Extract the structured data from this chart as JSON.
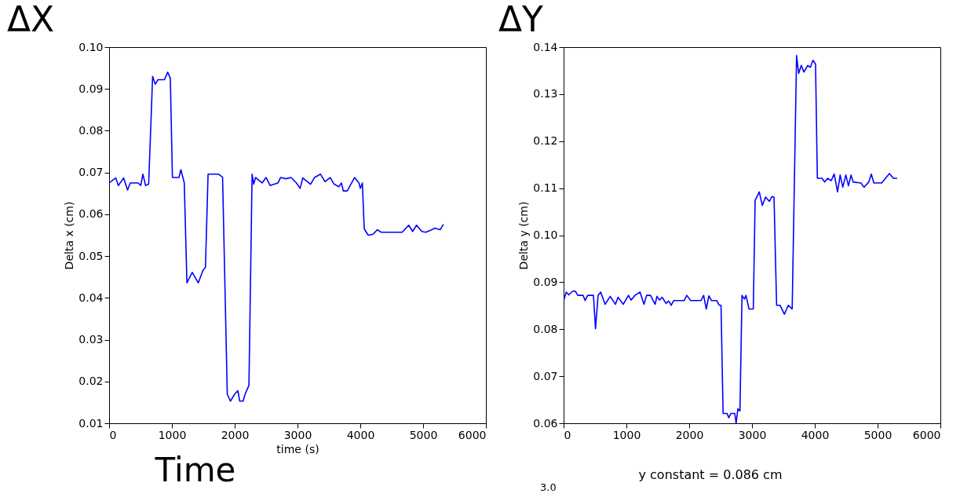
{
  "chart_data": [
    {
      "type": "line",
      "title": "ΔX",
      "xlabel": "time (s)",
      "ylabel": "Delta x (cm)",
      "annotations": [
        "Time"
      ],
      "xlim": [
        0,
        6000
      ],
      "xticks": [
        0,
        1000,
        2000,
        3000,
        4000,
        5000,
        6000
      ],
      "ylim": [
        0.01,
        0.1
      ],
      "yticks": [
        0.01,
        0.02,
        0.03,
        0.04,
        0.05,
        0.06,
        0.07,
        0.08,
        0.09,
        {
          "value": 0.1,
          "label": "0.10"
        }
      ],
      "series": [
        {
          "color": "#0000ff",
          "x": [
            0,
            105,
            147,
            231,
            294,
            336,
            462,
            504,
            538,
            580,
            630,
            693,
            735,
            777,
            882,
            933,
            975,
            1008,
            1113,
            1143,
            1197,
            1239,
            1324,
            1420,
            1492,
            1534,
            1576,
            1744,
            1807,
            1882,
            1933,
            1996,
            2050,
            2080,
            2134,
            2164,
            2227,
            2277,
            2303,
            2332,
            2437,
            2500,
            2563,
            2689,
            2731,
            2815,
            2899,
            2983,
            3042,
            3083,
            3208,
            3271,
            3367,
            3438,
            3521,
            3583,
            3658,
            3700,
            3729,
            3792,
            3908,
            3979,
            4000,
            4033,
            4063,
            4125,
            4200,
            4271,
            4333,
            4417,
            4667,
            4771,
            4833,
            4896,
            4979,
            5042,
            5125,
            5188,
            5271,
            5325
          ],
          "values": [
            0.0675,
            0.0687,
            0.0669,
            0.0687,
            0.0658,
            0.0675,
            0.0675,
            0.0669,
            0.0696,
            0.0669,
            0.0672,
            0.093,
            0.0911,
            0.0922,
            0.0922,
            0.094,
            0.0925,
            0.0688,
            0.0688,
            0.0707,
            0.0675,
            0.0436,
            0.0461,
            0.0436,
            0.0465,
            0.0473,
            0.0696,
            0.0696,
            0.0689,
            0.0169,
            0.0153,
            0.0169,
            0.0178,
            0.0153,
            0.0153,
            0.0169,
            0.0191,
            0.0696,
            0.0672,
            0.0688,
            0.0675,
            0.0688,
            0.0669,
            0.0675,
            0.0688,
            0.0685,
            0.0688,
            0.0675,
            0.0662,
            0.0687,
            0.0672,
            0.0688,
            0.0696,
            0.0678,
            0.0688,
            0.0672,
            0.0666,
            0.0675,
            0.0656,
            0.0656,
            0.0688,
            0.0675,
            0.0662,
            0.0675,
            0.0565,
            0.055,
            0.0552,
            0.0563,
            0.0557,
            0.0557,
            0.0557,
            0.0574,
            0.0559,
            0.0574,
            0.0559,
            0.0557,
            0.0562,
            0.0567,
            0.0563,
            0.0576
          ]
        }
      ]
    },
    {
      "type": "line",
      "title": "ΔY",
      "ylabel": "Delta y (cm)",
      "annotations": [
        "y constant = 0.086 cm",
        "3.0"
      ],
      "xlim": [
        0,
        6000
      ],
      "xticks": [
        0,
        1000,
        2000,
        3000,
        4000,
        5000,
        6000
      ],
      "ylim": [
        0.06,
        0.14
      ],
      "yticks": [
        0.06,
        0.07,
        0.08,
        0.09,
        {
          "value": 0.1,
          "label": "0.10"
        },
        0.11,
        0.12,
        0.13,
        0.14
      ],
      "series": [
        {
          "color": "#0000ff",
          "x": [
            0,
            41,
            83,
            145,
            186,
            227,
            310,
            343,
            384,
            475,
            508,
            549,
            591,
            661,
            743,
            826,
            867,
            950,
            1033,
            1074,
            1136,
            1218,
            1280,
            1322,
            1384,
            1458,
            1487,
            1528,
            1569,
            1631,
            1673,
            1714,
            1755,
            1921,
            1962,
            2024,
            2189,
            2230,
            2272,
            2313,
            2354,
            2437,
            2478,
            2507,
            2540,
            2602,
            2631,
            2664,
            2726,
            2747,
            2776,
            2808,
            2841,
            2879,
            2904,
            2953,
            2979,
            3021,
            3050,
            3116,
            3165,
            3215,
            3277,
            3318,
            3351,
            3392,
            3446,
            3516,
            3578,
            3640,
            3710,
            3743,
            3785,
            3826,
            3888,
            3929,
            3971,
            4012,
            4041,
            4116,
            4157,
            4207,
            4260,
            4309,
            4363,
            4404,
            4446,
            4495,
            4536,
            4578,
            4611,
            4735,
            4785,
            4859,
            4900,
            4941,
            5065,
            5127,
            5189,
            5251,
            5313
          ],
          "values": [
            0.086,
            0.0879,
            0.0873,
            0.0881,
            0.0881,
            0.0872,
            0.0872,
            0.0861,
            0.0872,
            0.0872,
            0.0801,
            0.0872,
            0.0879,
            0.0853,
            0.087,
            0.0853,
            0.0868,
            0.0853,
            0.0872,
            0.0862,
            0.0872,
            0.0879,
            0.0853,
            0.0872,
            0.0872,
            0.0853,
            0.087,
            0.0862,
            0.0868,
            0.0855,
            0.086,
            0.0851,
            0.0861,
            0.0861,
            0.0872,
            0.0861,
            0.0861,
            0.0872,
            0.0843,
            0.0871,
            0.0861,
            0.0861,
            0.0851,
            0.0851,
            0.0621,
            0.0621,
            0.0612,
            0.0621,
            0.0621,
            0.06,
            0.0631,
            0.0626,
            0.0872,
            0.0864,
            0.0872,
            0.0843,
            0.0843,
            0.0843,
            0.1074,
            0.1092,
            0.1063,
            0.1081,
            0.1072,
            0.1082,
            0.1081,
            0.0851,
            0.0851,
            0.0832,
            0.0851,
            0.0843,
            0.1382,
            0.1344,
            0.1361,
            0.1347,
            0.1361,
            0.1357,
            0.1372,
            0.1364,
            0.1121,
            0.1121,
            0.1113,
            0.1121,
            0.1116,
            0.113,
            0.1092,
            0.1128,
            0.1102,
            0.1128,
            0.1105,
            0.1128,
            0.1113,
            0.1111,
            0.1102,
            0.1113,
            0.113,
            0.1111,
            0.1111,
            0.1121,
            0.1131,
            0.1121,
            0.1121
          ]
        }
      ]
    }
  ]
}
